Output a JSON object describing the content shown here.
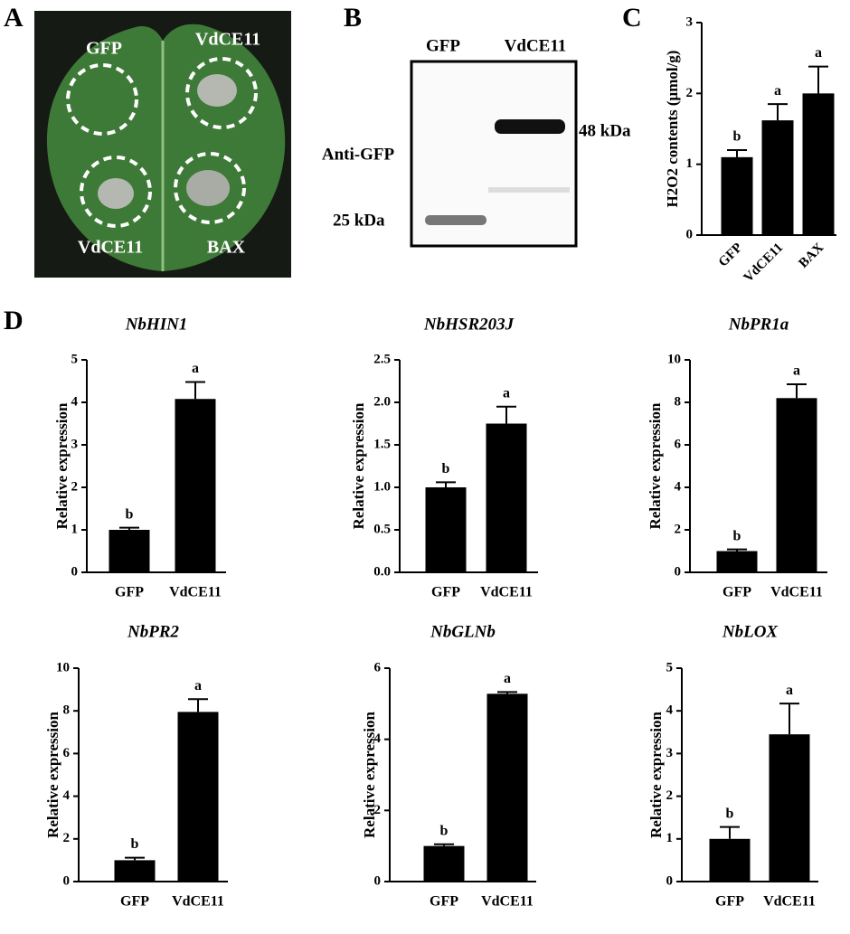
{
  "panel_a": {
    "letter": "A",
    "labels": [
      "GFP",
      "VdCE11",
      "VdCE11",
      "BAX"
    ]
  },
  "panel_b": {
    "letter": "B",
    "lanes": [
      "GFP",
      "VdCE11"
    ],
    "antibody": "Anti-GFP",
    "markers": [
      "48 kDa",
      "25 kDa"
    ]
  },
  "panel_c": {
    "letter": "C"
  },
  "panel_d": {
    "letter": "D"
  },
  "chart_data": [
    {
      "type": "bar",
      "ylabel": "H2O2 contents (μmol/g)",
      "categories": [
        "GFP",
        "VdCE11",
        "BAX"
      ],
      "values": [
        1.1,
        1.62,
        2.0
      ],
      "errors": [
        0.1,
        0.23,
        0.38
      ],
      "annotations": [
        "b",
        "a",
        "a"
      ],
      "color": "#000000",
      "ylim": [
        0,
        3
      ],
      "yticks": [
        0,
        1,
        2,
        3
      ]
    },
    {
      "type": "bar",
      "title": "NbHIN1",
      "ylabel": "Relative expression",
      "categories": [
        "GFP",
        "VdCE11"
      ],
      "values": [
        1.0,
        4.08
      ],
      "errors": [
        0.05,
        0.4
      ],
      "annotations": [
        "b",
        "a"
      ],
      "color": "#000000",
      "ylim": [
        0,
        5
      ],
      "yticks": [
        0,
        1,
        2,
        3,
        4,
        5
      ]
    },
    {
      "type": "bar",
      "title": "NbHSR203J",
      "ylabel": "Relative expression",
      "categories": [
        "GFP",
        "VdCE11"
      ],
      "values": [
        1.0,
        1.75
      ],
      "errors": [
        0.06,
        0.2
      ],
      "annotations": [
        "b",
        "a"
      ],
      "color": "#000000",
      "ylim": [
        0,
        2.5
      ],
      "yticks": [
        {
          "value": 0,
          "label": "0.0"
        },
        0.5,
        {
          "value": 1,
          "label": "1.0"
        },
        1.5,
        {
          "value": 2,
          "label": "2.0"
        },
        2.5
      ]
    },
    {
      "type": "bar",
      "title": "NbPR1a",
      "ylabel": "Relative expression",
      "categories": [
        "GFP",
        "VdCE11"
      ],
      "values": [
        1.0,
        8.2
      ],
      "errors": [
        0.08,
        0.65
      ],
      "annotations": [
        "b",
        "a"
      ],
      "color": "#000000",
      "ylim": [
        0,
        10
      ],
      "yticks": [
        0,
        2,
        4,
        6,
        8,
        10
      ]
    },
    {
      "type": "bar",
      "title": "NbPR2",
      "ylabel": "Relative expression",
      "categories": [
        "GFP",
        "VdCE11"
      ],
      "values": [
        1.0,
        7.95
      ],
      "errors": [
        0.12,
        0.6
      ],
      "annotations": [
        "b",
        "a"
      ],
      "color": "#000000",
      "ylim": [
        0,
        10
      ],
      "yticks": [
        0,
        2,
        4,
        6,
        8,
        10
      ]
    },
    {
      "type": "bar",
      "title": "NbGLNb",
      "ylabel": "Relative expression",
      "categories": [
        "GFP",
        "VdCE11"
      ],
      "values": [
        1.0,
        5.28
      ],
      "errors": [
        0.05,
        0.05
      ],
      "annotations": [
        "b",
        "a"
      ],
      "color": "#000000",
      "ylim": [
        0,
        6
      ],
      "yticks": [
        0,
        2,
        4,
        6
      ]
    },
    {
      "type": "bar",
      "title": "NbLOX",
      "ylabel": "Relative expression",
      "categories": [
        "GFP",
        "VdCE11"
      ],
      "values": [
        1.0,
        3.45
      ],
      "errors": [
        0.28,
        0.72
      ],
      "annotations": [
        "b",
        "a"
      ],
      "color": "#000000",
      "ylim": [
        0,
        5
      ],
      "yticks": [
        0,
        1,
        2,
        3,
        4,
        5
      ]
    }
  ]
}
